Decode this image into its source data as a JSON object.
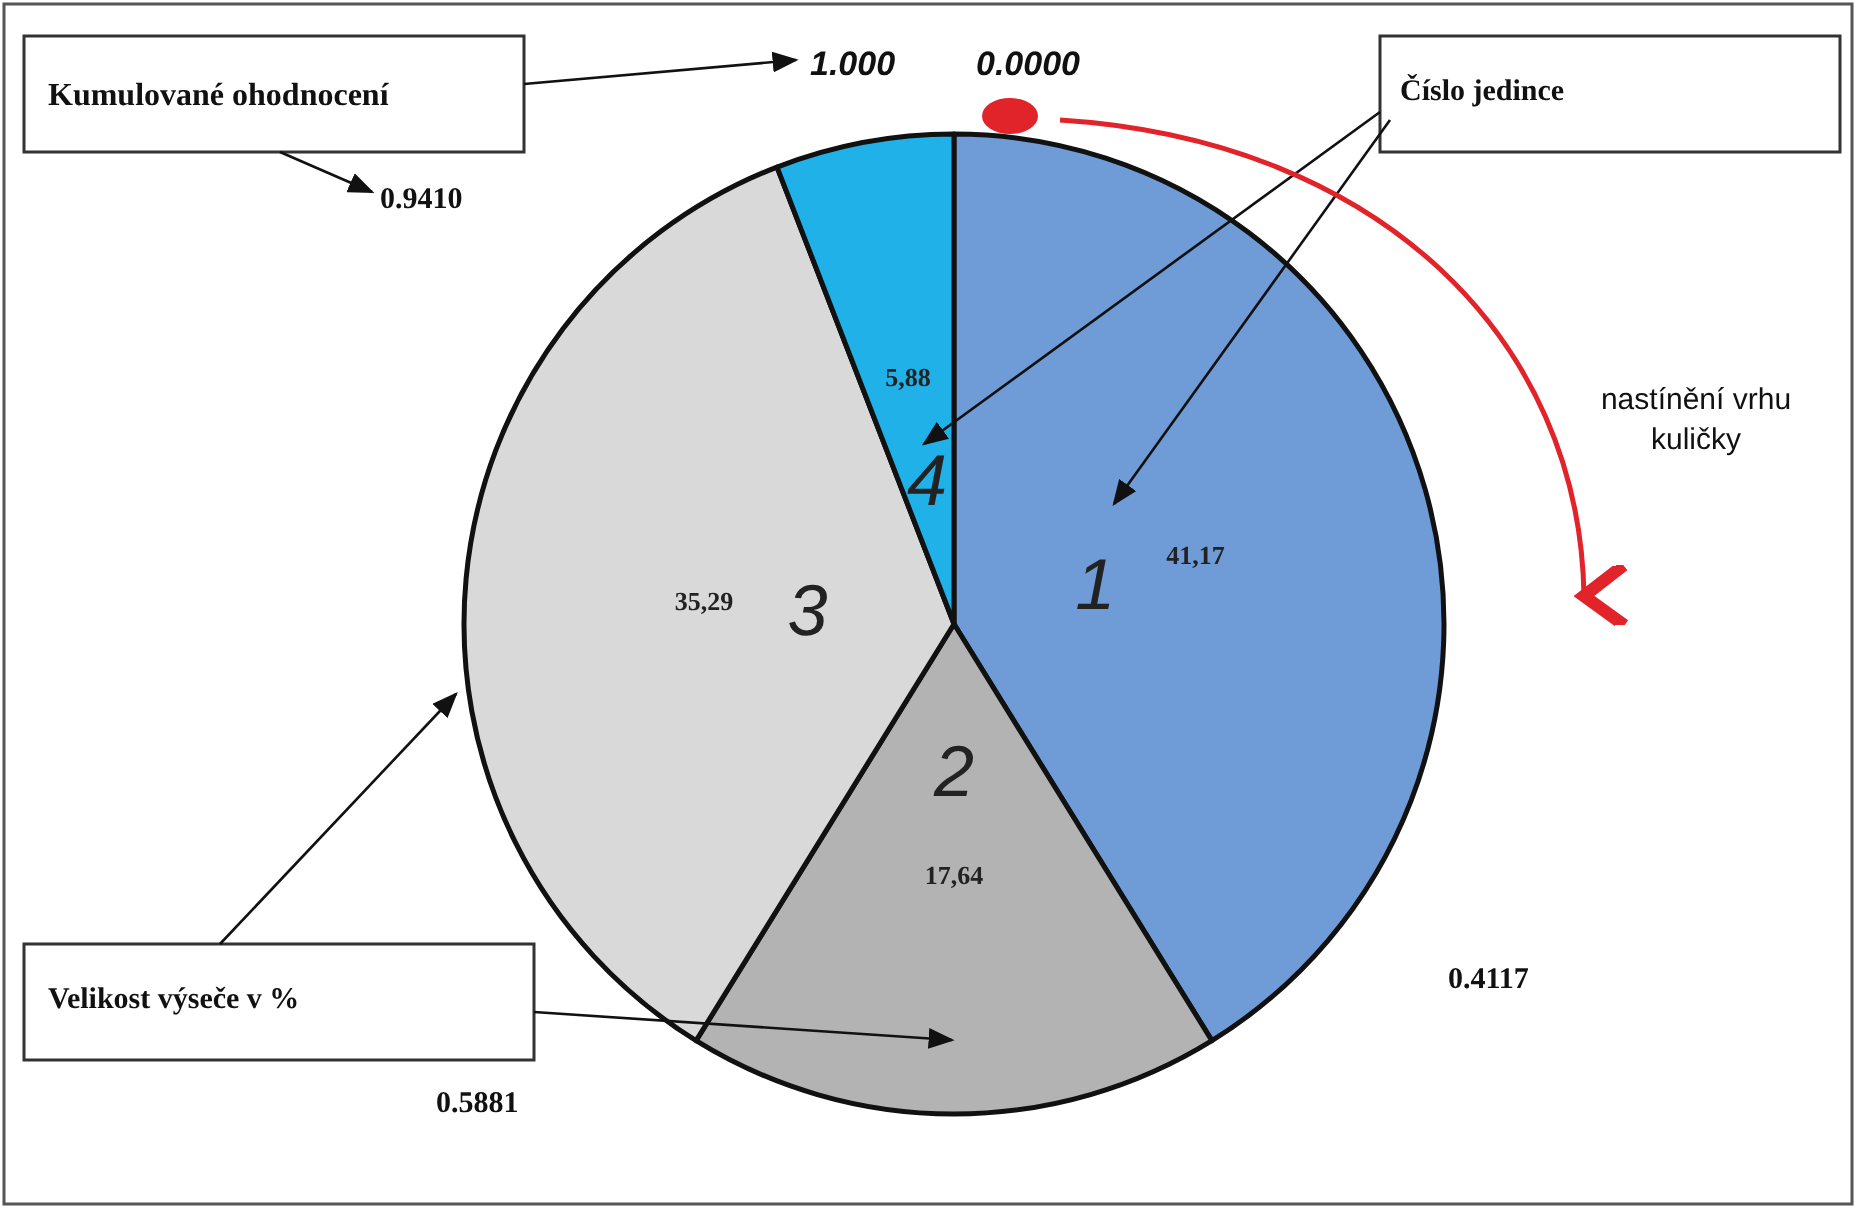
{
  "chart_data": {
    "type": "pie",
    "categories": [
      "1",
      "2",
      "3",
      "4"
    ],
    "values": [
      41.17,
      17.64,
      35.29,
      5.88
    ],
    "value_labels": [
      "41,17",
      "17,64",
      "35,29",
      "5,88"
    ],
    "colors": [
      "#6f9bd6",
      "#b3b3b3",
      "#d9d9d9",
      "#1fb1e8"
    ],
    "legend": false,
    "annotations": [
      "Kumulované ohodnocení",
      "1.000",
      "0.0000",
      "0.9410",
      "0.4117",
      "0.5881",
      "Číslo jedince",
      "nastínění vrhu\nkuličky",
      "Velikost výseče v %"
    ]
  }
}
